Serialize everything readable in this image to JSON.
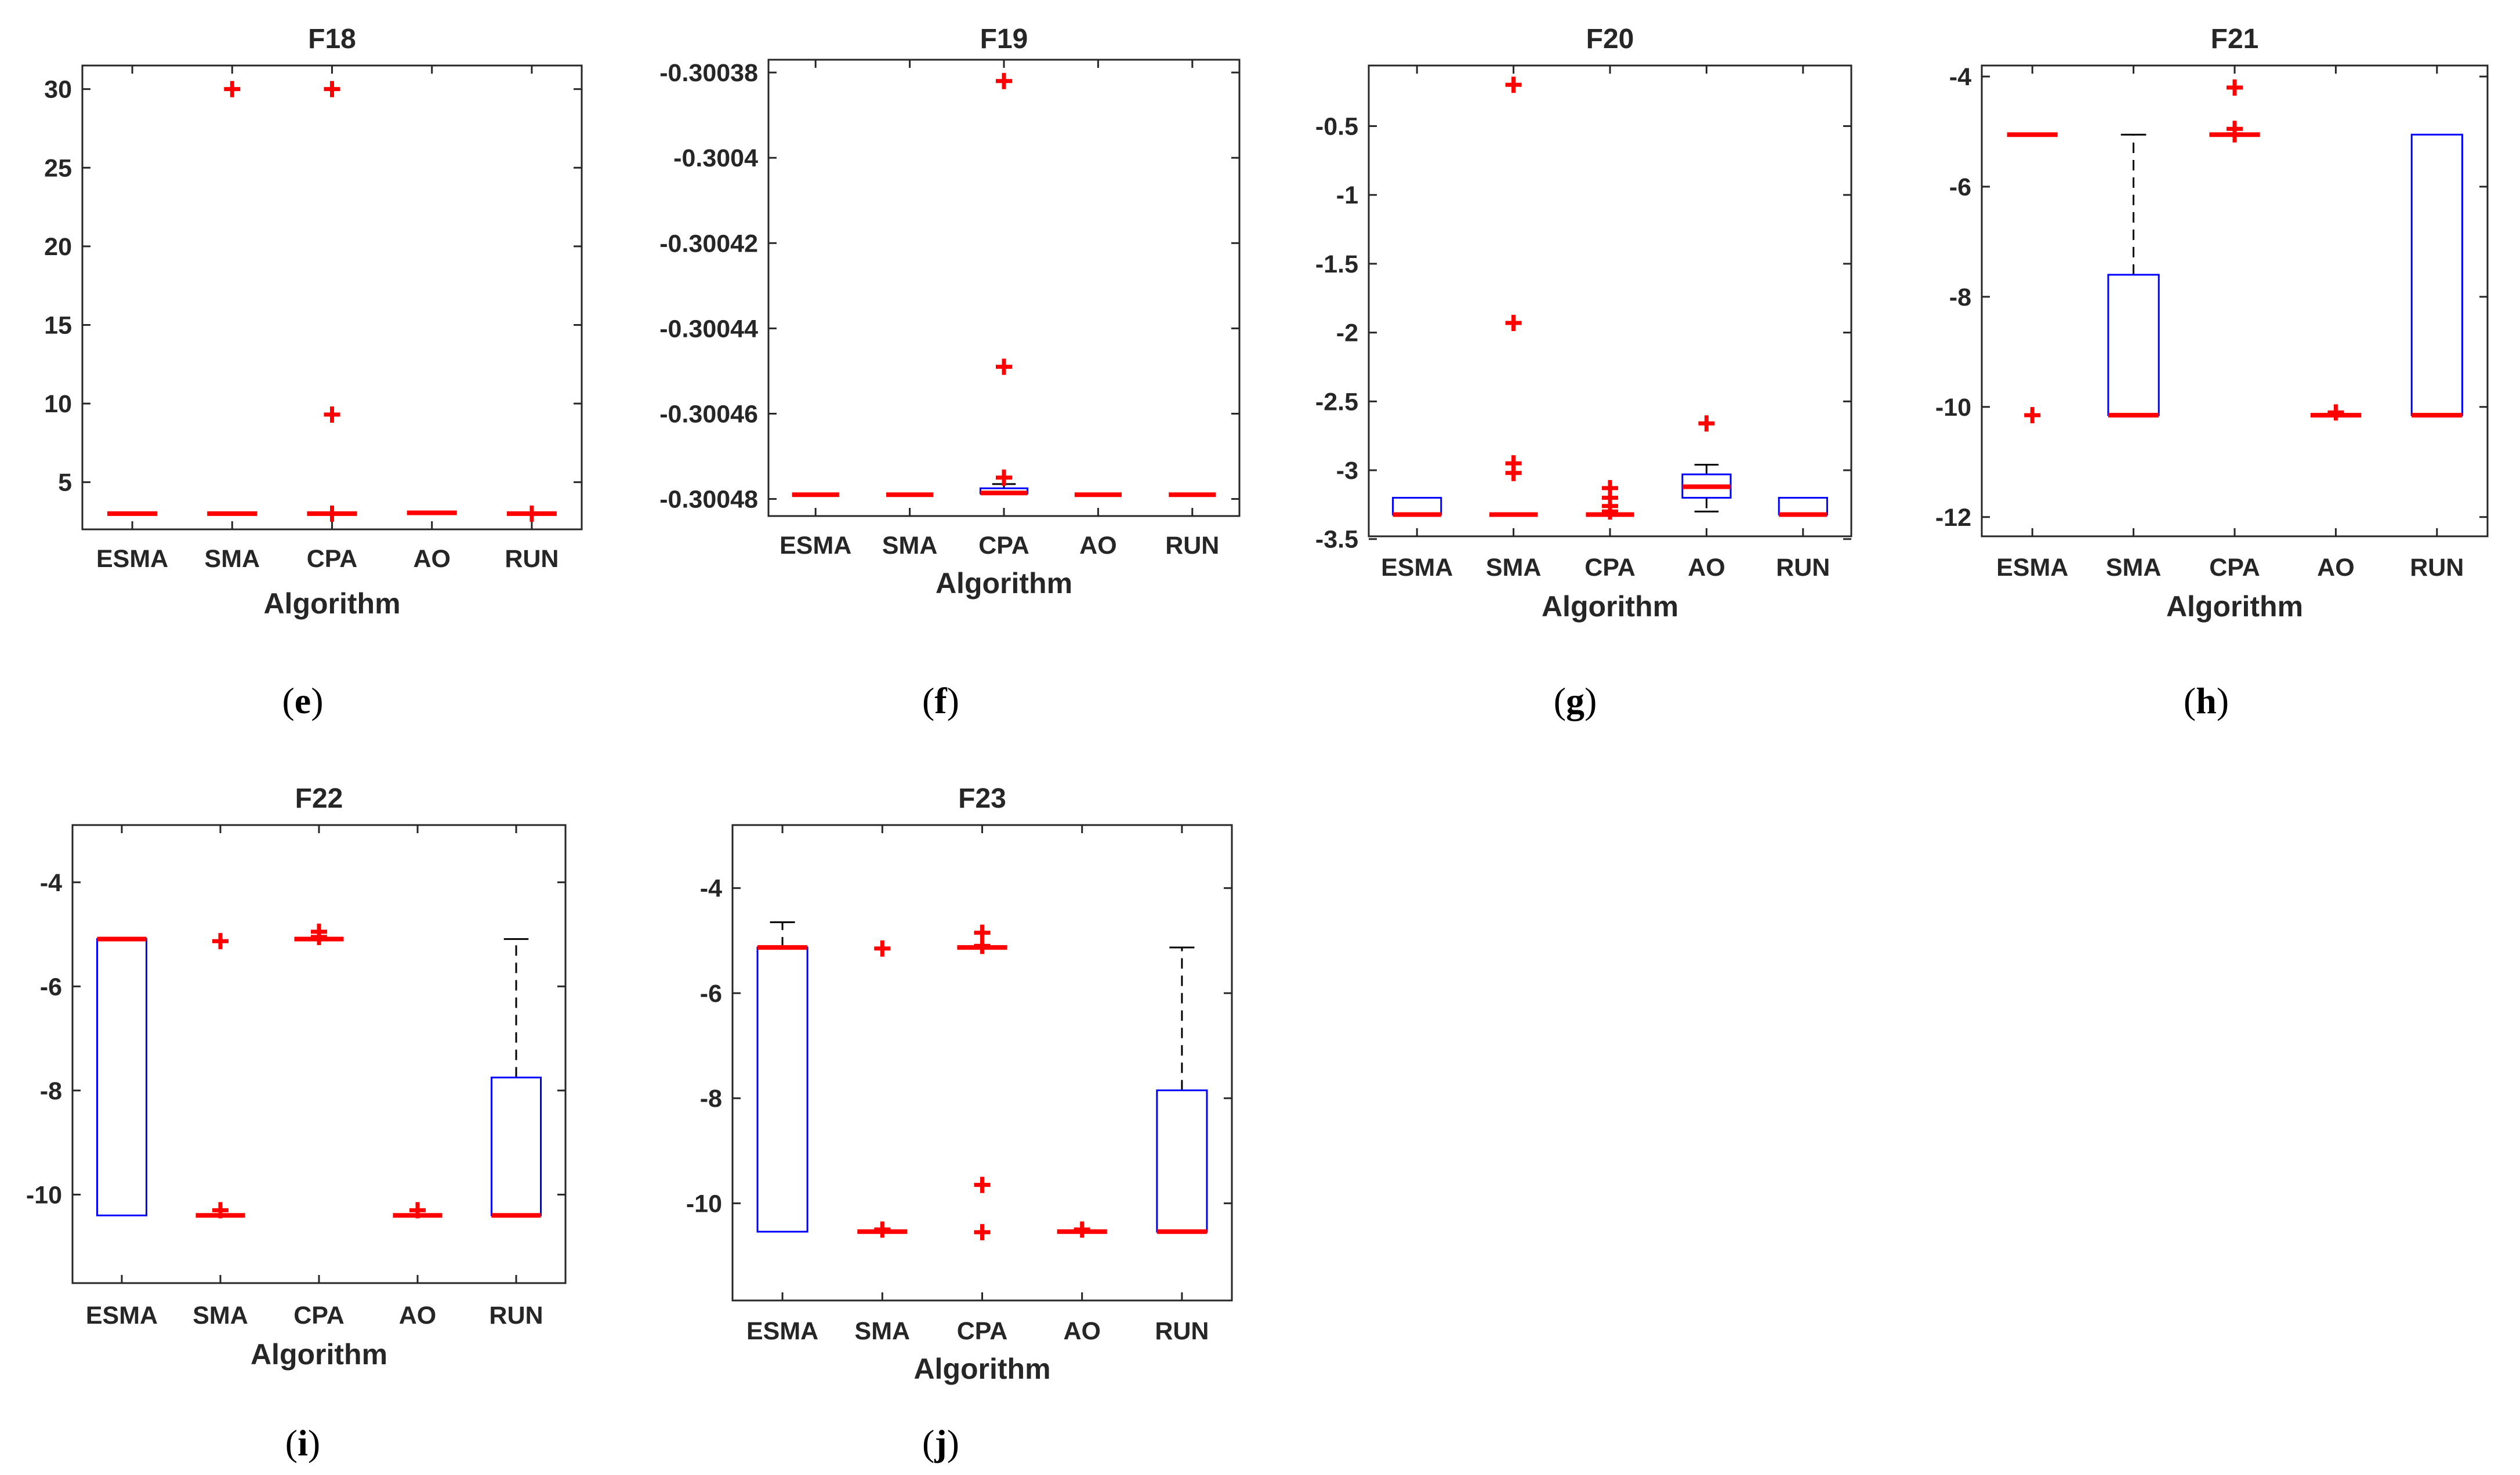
{
  "colors": {
    "box": "#0000ff",
    "median": "#ff0000",
    "outlier": "#ff0000",
    "whisker": "#000000",
    "axis": "#262626"
  },
  "chart_data": [
    {
      "type": "box",
      "title": "F18",
      "caption": "e",
      "xlabel": "Algorithm",
      "categories": [
        "ESMA",
        "SMA",
        "CPA",
        "AO",
        "RUN"
      ],
      "ylim": [
        2,
        31.5
      ],
      "yticks": [
        5,
        10,
        15,
        20,
        25,
        30
      ],
      "yticklabels": [
        "5",
        "10",
        "15",
        "20",
        "25",
        "30"
      ],
      "boxes": [
        {
          "category": "ESMA",
          "q1": 3,
          "median": 3,
          "q3": 3,
          "whisker_low": 3,
          "whisker_high": 3,
          "outliers": []
        },
        {
          "category": "SMA",
          "q1": 3,
          "median": 3,
          "q3": 3,
          "whisker_low": 3,
          "whisker_high": 3,
          "outliers": [
            30
          ]
        },
        {
          "category": "CPA",
          "q1": 3,
          "median": 3,
          "q3": 3,
          "whisker_low": 3,
          "whisker_high": 3,
          "outliers": [
            30,
            9.3,
            3
          ]
        },
        {
          "category": "AO",
          "q1": 3.05,
          "median": 3.05,
          "q3": 3.05,
          "whisker_low": 3.05,
          "whisker_high": 3.05,
          "outliers": []
        },
        {
          "category": "RUN",
          "q1": 3,
          "median": 3,
          "q3": 3,
          "whisker_low": 3,
          "whisker_high": 3,
          "outliers": [
            3
          ]
        }
      ]
    },
    {
      "type": "box",
      "title": "F19",
      "caption": "f",
      "xlabel": "Algorithm",
      "categories": [
        "ESMA",
        "SMA",
        "CPA",
        "AO",
        "RUN"
      ],
      "ylim": [
        -0.300484,
        -0.300377
      ],
      "yticks": [
        -0.30048,
        -0.30046,
        -0.30044,
        -0.30042,
        -0.3004,
        -0.30038
      ],
      "yticklabels": [
        "-0.30048",
        "-0.30046",
        "-0.30044",
        "-0.30042",
        "-0.3004",
        "-0.30038"
      ],
      "boxes": [
        {
          "category": "ESMA",
          "q1": -0.300479,
          "median": -0.300479,
          "q3": -0.300479,
          "whisker_low": -0.300479,
          "whisker_high": -0.300479,
          "outliers": []
        },
        {
          "category": "SMA",
          "q1": -0.300479,
          "median": -0.300479,
          "q3": -0.300479,
          "whisker_low": -0.300479,
          "whisker_high": -0.300479,
          "outliers": []
        },
        {
          "category": "CPA",
          "q1": -0.3004787,
          "median": -0.3004786,
          "q3": -0.3004775,
          "whisker_low": -0.3004788,
          "whisker_high": -0.3004765,
          "outliers": [
            -0.300382,
            -0.300449,
            -0.300475
          ]
        },
        {
          "category": "AO",
          "q1": -0.300479,
          "median": -0.300479,
          "q3": -0.300479,
          "whisker_low": -0.300479,
          "whisker_high": -0.300479,
          "outliers": []
        },
        {
          "category": "RUN",
          "q1": -0.300479,
          "median": -0.300479,
          "q3": -0.300479,
          "whisker_low": -0.300479,
          "whisker_high": -0.300479,
          "outliers": []
        }
      ]
    },
    {
      "type": "box",
      "title": "F20",
      "caption": "g",
      "xlabel": "Algorithm",
      "categories": [
        "ESMA",
        "SMA",
        "CPA",
        "AO",
        "RUN"
      ],
      "ylim": [
        -3.48,
        -0.06
      ],
      "yticks": [
        -3.5,
        -3,
        -2.5,
        -2,
        -1.5,
        -1,
        -0.5
      ],
      "yticklabels": [
        "-3.5",
        "-3",
        "-2.5",
        "-2",
        "-1.5",
        "-1",
        "-0.5"
      ],
      "boxes": [
        {
          "category": "ESMA",
          "q1": -3.322,
          "median": -3.322,
          "q3": -3.2,
          "whisker_low": -3.322,
          "whisker_high": -3.2,
          "outliers": []
        },
        {
          "category": "SMA",
          "q1": -3.322,
          "median": -3.322,
          "q3": -3.322,
          "whisker_low": -3.322,
          "whisker_high": -3.322,
          "outliers": [
            -0.2,
            -1.93,
            -2.95,
            -3.02
          ]
        },
        {
          "category": "CPA",
          "q1": -3.322,
          "median": -3.322,
          "q3": -3.322,
          "whisker_low": -3.322,
          "whisker_high": -3.322,
          "outliers": [
            -3.13,
            -3.2,
            -3.26,
            -3.3
          ]
        },
        {
          "category": "AO",
          "q1": -3.2,
          "median": -3.12,
          "q3": -3.03,
          "whisker_low": -3.3,
          "whisker_high": -2.96,
          "outliers": [
            -2.66
          ]
        },
        {
          "category": "RUN",
          "q1": -3.322,
          "median": -3.322,
          "q3": -3.2,
          "whisker_low": -3.322,
          "whisker_high": -3.2,
          "outliers": []
        }
      ]
    },
    {
      "type": "box",
      "title": "F21",
      "caption": "h",
      "xlabel": "Algorithm",
      "categories": [
        "ESMA",
        "SMA",
        "CPA",
        "AO",
        "RUN"
      ],
      "ylim": [
        -12.35,
        -3.8
      ],
      "yticks": [
        -12,
        -10,
        -8,
        -6,
        -4
      ],
      "yticklabels": [
        "-12",
        "-10",
        "-8",
        "-6",
        "-4"
      ],
      "boxes": [
        {
          "category": "ESMA",
          "q1": -5.055,
          "median": -5.055,
          "q3": -5.055,
          "whisker_low": -5.055,
          "whisker_high": -5.055,
          "outliers": [
            -10.15
          ]
        },
        {
          "category": "SMA",
          "q1": -10.15,
          "median": -10.15,
          "q3": -7.6,
          "whisker_low": -10.15,
          "whisker_high": -5.055,
          "outliers": []
        },
        {
          "category": "CPA",
          "q1": -5.055,
          "median": -5.055,
          "q3": -5.055,
          "whisker_low": -5.055,
          "whisker_high": -5.055,
          "outliers": [
            -4.2,
            -4.95,
            -5.05
          ]
        },
        {
          "category": "AO",
          "q1": -10.15,
          "median": -10.15,
          "q3": -10.15,
          "whisker_low": -10.15,
          "whisker_high": -10.15,
          "outliers": [
            -10.1
          ]
        },
        {
          "category": "RUN",
          "q1": -10.15,
          "median": -10.15,
          "q3": -5.055,
          "whisker_low": -10.15,
          "whisker_high": -5.055,
          "outliers": []
        }
      ]
    },
    {
      "type": "box",
      "title": "F22",
      "caption": "i",
      "xlabel": "Algorithm",
      "categories": [
        "ESMA",
        "SMA",
        "CPA",
        "AO",
        "RUN"
      ],
      "ylim": [
        -11.7,
        -2.9
      ],
      "yticks": [
        -10,
        -8,
        -6,
        -4
      ],
      "yticklabels": [
        "-10",
        "-8",
        "-6",
        "-4"
      ],
      "boxes": [
        {
          "category": "ESMA",
          "q1": -10.4,
          "median": -5.09,
          "q3": -5.09,
          "whisker_low": -10.4,
          "whisker_high": -5.09,
          "outliers": []
        },
        {
          "category": "SMA",
          "q1": -10.4,
          "median": -10.4,
          "q3": -10.4,
          "whisker_low": -10.4,
          "whisker_high": -10.4,
          "outliers": [
            -5.13,
            -10.3
          ]
        },
        {
          "category": "CPA",
          "q1": -5.09,
          "median": -5.09,
          "q3": -5.09,
          "whisker_low": -5.09,
          "whisker_high": -5.09,
          "outliers": [
            -4.95,
            -5.05
          ]
        },
        {
          "category": "AO",
          "q1": -10.4,
          "median": -10.4,
          "q3": -10.4,
          "whisker_low": -10.4,
          "whisker_high": -10.4,
          "outliers": [
            -10.3
          ]
        },
        {
          "category": "RUN",
          "q1": -10.4,
          "median": -10.4,
          "q3": -7.75,
          "whisker_low": -10.4,
          "whisker_high": -5.09,
          "outliers": []
        }
      ]
    },
    {
      "type": "box",
      "title": "F23",
      "caption": "j",
      "xlabel": "Algorithm",
      "categories": [
        "ESMA",
        "SMA",
        "CPA",
        "AO",
        "RUN"
      ],
      "ylim": [
        -11.85,
        -2.8
      ],
      "yticks": [
        -10,
        -8,
        -6,
        -4
      ],
      "yticklabels": [
        "-10",
        "-8",
        "-6",
        "-4"
      ],
      "boxes": [
        {
          "category": "ESMA",
          "q1": -10.54,
          "median": -5.13,
          "q3": -5.13,
          "whisker_low": -10.54,
          "whisker_high": -4.65,
          "outliers": []
        },
        {
          "category": "SMA",
          "q1": -10.54,
          "median": -10.54,
          "q3": -10.54,
          "whisker_low": -10.54,
          "whisker_high": -10.54,
          "outliers": [
            -5.15,
            -10.5
          ]
        },
        {
          "category": "CPA",
          "q1": -5.13,
          "median": -5.13,
          "q3": -5.13,
          "whisker_low": -5.13,
          "whisker_high": -5.13,
          "outliers": [
            -4.85,
            -5.1,
            -9.65,
            -10.55
          ]
        },
        {
          "category": "AO",
          "q1": -10.54,
          "median": -10.54,
          "q3": -10.54,
          "whisker_low": -10.54,
          "whisker_high": -10.54,
          "outliers": [
            -10.5
          ]
        },
        {
          "category": "RUN",
          "q1": -10.54,
          "median": -10.54,
          "q3": -7.85,
          "whisker_low": -10.54,
          "whisker_high": -5.13,
          "outliers": []
        }
      ]
    }
  ]
}
